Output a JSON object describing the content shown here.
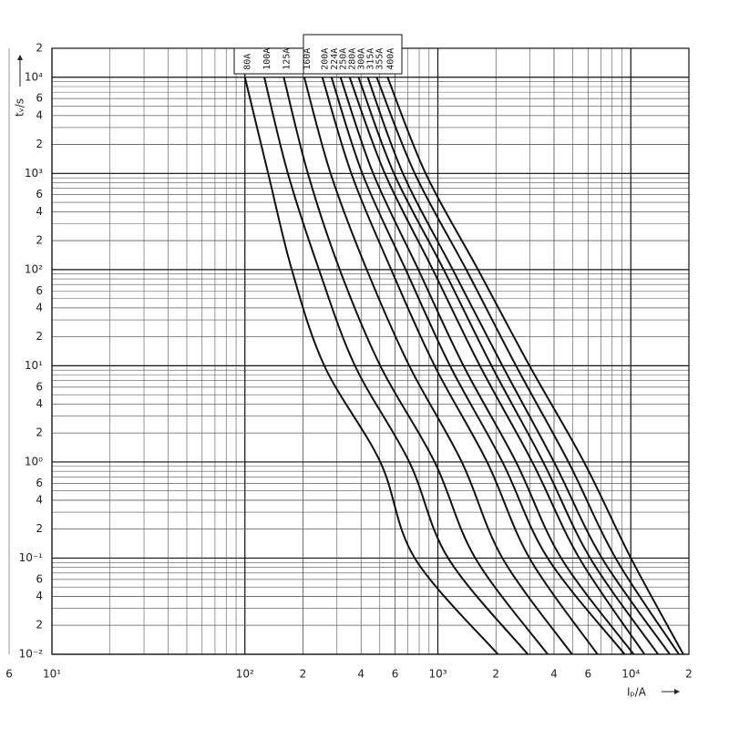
{
  "chart_data": {
    "type": "line",
    "x_label": "Iₚ/A",
    "y_label": "tᵥ/s",
    "x_log": true,
    "y_log": true,
    "grid": true,
    "minor_grid": true,
    "xlim": [
      10,
      20000
    ],
    "ylim": [
      0.01,
      20000
    ],
    "xticks": [
      {
        "value": 10,
        "label": "10¹"
      },
      2,
      4,
      6,
      {
        "value": 100,
        "label": "10²"
      },
      {
        "value": 200,
        "label": "2"
      },
      {
        "value": 400,
        "label": "4"
      },
      {
        "value": 600,
        "label": "6"
      },
      {
        "value": 1000,
        "label": "10³"
      },
      {
        "value": 2000,
        "label": "2"
      },
      {
        "value": 4000,
        "label": "4"
      },
      {
        "value": 6000,
        "label": "6"
      },
      {
        "value": 10000,
        "label": "10⁴"
      },
      {
        "value": 20000,
        "label": "2"
      }
    ],
    "yticks": [
      {
        "value": 0.01,
        "label": "10⁻²"
      },
      {
        "value": 0.02,
        "label": "2"
      },
      {
        "value": 0.04,
        "label": "4"
      },
      {
        "value": 0.06,
        "label": "6"
      },
      {
        "value": 0.1,
        "label": "10⁻¹"
      },
      {
        "value": 0.2,
        "label": "2"
      },
      {
        "value": 0.4,
        "label": "4"
      },
      {
        "value": 0.6,
        "label": "6"
      },
      {
        "value": 1,
        "label": "10⁰"
      },
      2,
      4,
      6,
      {
        "value": 10,
        "label": "10¹"
      },
      {
        "value": 20,
        "label": "2"
      },
      {
        "value": 40,
        "label": "4"
      },
      {
        "value": 60,
        "label": "6"
      },
      {
        "value": 100,
        "label": "10²"
      },
      {
        "value": 200,
        "label": "2"
      },
      {
        "value": 400,
        "label": "4"
      },
      {
        "value": 600,
        "label": "6"
      },
      {
        "value": 1000,
        "label": "10³"
      },
      {
        "value": 2000,
        "label": "2"
      },
      {
        "value": 4000,
        "label": "4"
      },
      {
        "value": 6000,
        "label": "6"
      },
      {
        "value": 10000,
        "label": "10⁴"
      },
      {
        "value": 20000,
        "label": "2"
      }
    ],
    "series": [
      {
        "name": "80A",
        "color": "#111111",
        "x": [
          100,
          132,
          175,
          258,
          503,
          759,
          2047
        ],
        "values": [
          10000,
          1000,
          100,
          10,
          1,
          0.1,
          0.01
        ]
      },
      {
        "name": "100A",
        "color": "#111111",
        "x": [
          126,
          167,
          242,
          372,
          711,
          1130,
          2924
        ],
        "values": [
          10000,
          1000,
          100,
          10,
          1,
          0.1,
          0.01
        ]
      },
      {
        "name": "125A",
        "color": "#111111",
        "x": [
          159,
          212,
          310,
          503,
          962,
          1563,
          3708
        ],
        "values": [
          10000,
          1000,
          100,
          10,
          1,
          0.1,
          0.01
        ]
      },
      {
        "name": "160A",
        "color": "#111111",
        "x": [
          203,
          278,
          428,
          711,
          1330,
          2161,
          4961
        ],
        "values": [
          10000,
          1000,
          100,
          10,
          1,
          0.1,
          0.01
        ]
      },
      {
        "name": "200A",
        "color": "#111111",
        "x": [
          252,
          356,
          573,
          962,
          1799,
          2985,
          6717
        ],
        "values": [
          10000,
          1000,
          100,
          10,
          1,
          0.1,
          0.01
        ]
      },
      {
        "name": "224A",
        "color": "#111111",
        "x": [
          281,
          406,
          681,
          1156,
          2161,
          3708,
          9290
        ],
        "values": [
          10000,
          1000,
          100,
          10,
          1,
          0.1,
          0.01
        ]
      },
      {
        "name": "250A",
        "color": "#111111",
        "x": [
          313,
          462,
          792,
          1358,
          2541,
          4357,
          10340
        ],
        "values": [
          10000,
          1000,
          100,
          10,
          1,
          0.1,
          0.01
        ]
      },
      {
        "name": "280A",
        "color": "#111111",
        "x": [
          349,
          531,
          941,
          1651,
          3084,
          5408,
          11770
        ],
        "values": [
          10000,
          1000,
          100,
          10,
          1,
          0.1,
          0.01
        ]
      },
      {
        "name": "300A",
        "color": "#111111",
        "x": [
          388,
          592,
          1072,
          1897,
          3513,
          6160,
          13840
        ],
        "values": [
          10000,
          1000,
          100,
          10,
          1,
          0.1,
          0.01
        ]
      },
      {
        "name": "315A",
        "color": "#111111",
        "x": [
          433,
          659,
          1194,
          2161,
          3998,
          7087,
          15920
        ],
        "values": [
          10000,
          1000,
          100,
          10,
          1,
          0.1,
          0.01
        ]
      },
      {
        "name": "355A",
        "color": "#111111",
        "x": [
          482,
          759,
          1403,
          2541,
          4750,
          8340,
          17750
        ],
        "values": [
          10000,
          1000,
          100,
          10,
          1,
          0.1,
          0.01
        ]
      },
      {
        "name": "400A",
        "color": "#111111",
        "x": [
          549,
          864,
          1614,
          2985,
          5714,
          10010,
          18720
        ],
        "values": [
          10000,
          1000,
          100,
          10,
          1,
          0.1,
          0.01
        ]
      }
    ]
  }
}
